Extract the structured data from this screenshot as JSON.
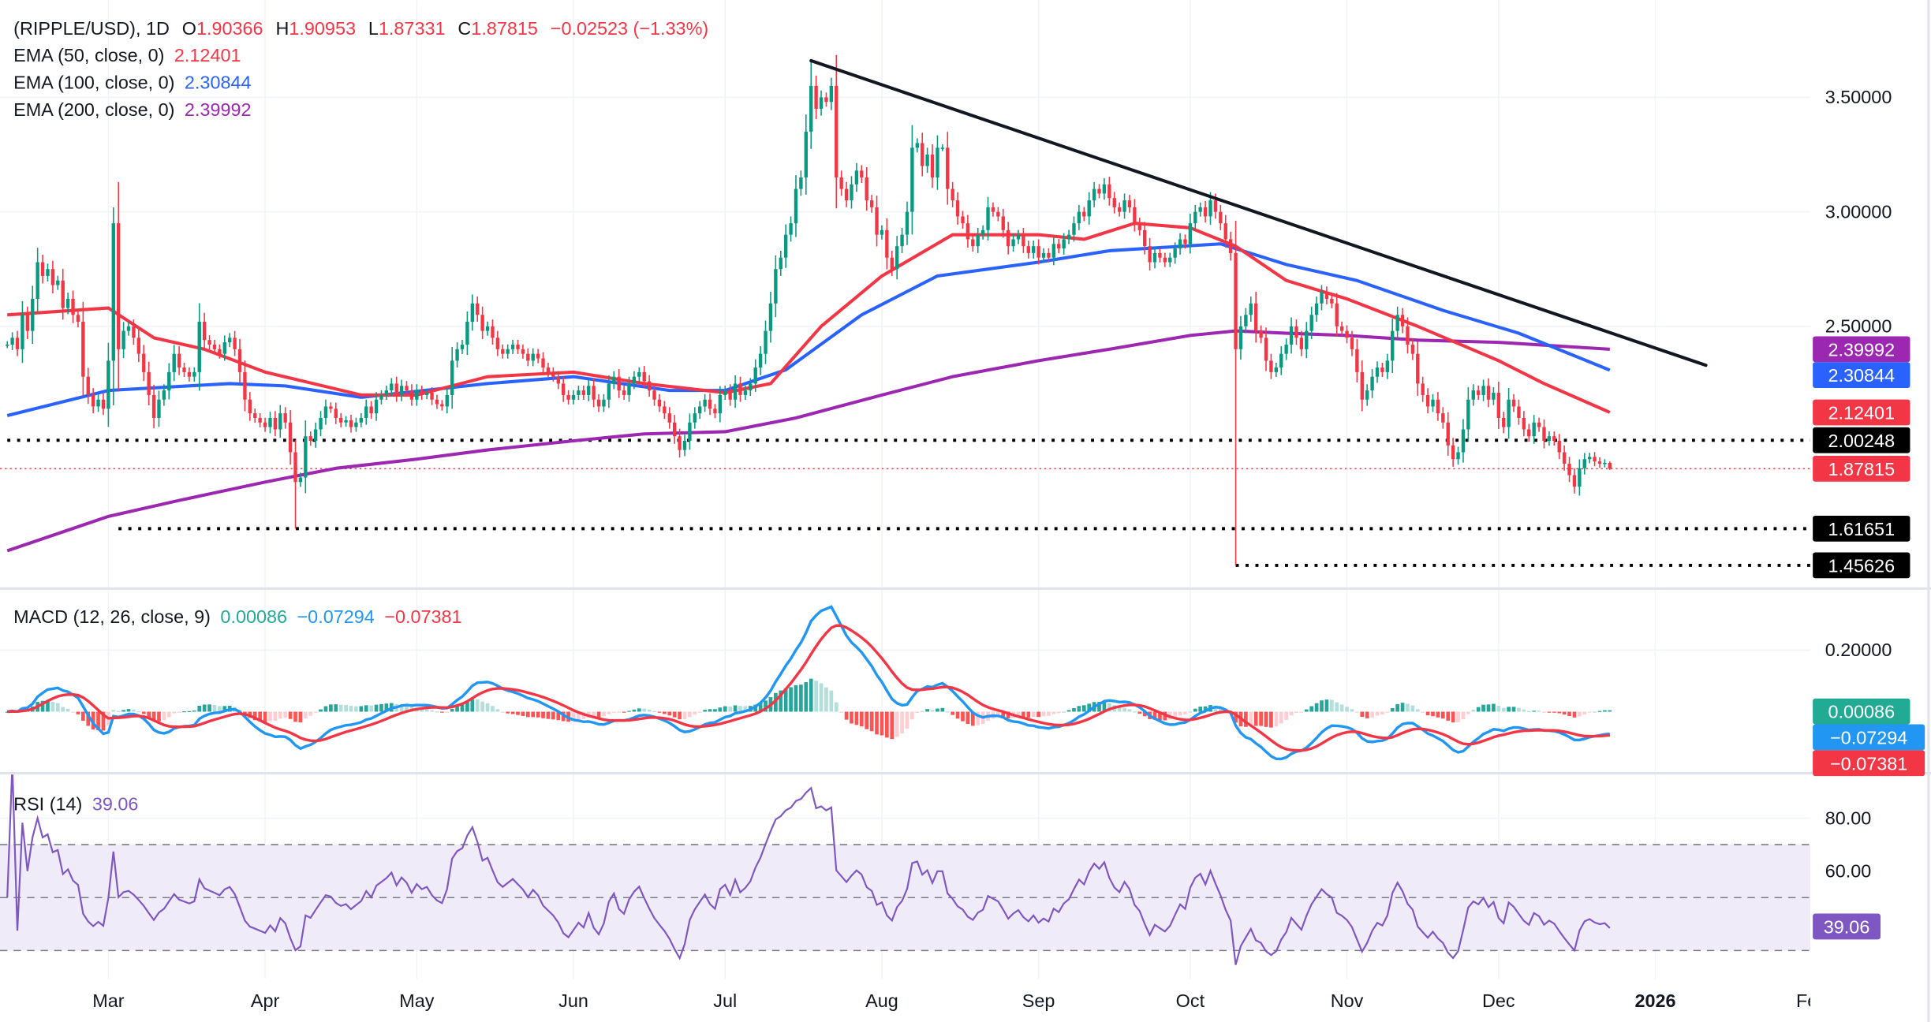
{
  "header": {
    "symbol": "(RIPPLE/USD), 1D",
    "o_label": "O",
    "o": "1.90366",
    "h_label": "H",
    "h": "1.90953",
    "l_label": "L",
    "l": "1.87331",
    "c_label": "C",
    "c": "1.87815",
    "change": "−0.02523 (−1.33%)"
  },
  "legend": {
    "ema50": {
      "label": "EMA (50, close, 0)",
      "value": "2.12401"
    },
    "ema100": {
      "label": "EMA (100, close, 0)",
      "value": "2.30844"
    },
    "ema200": {
      "label": "EMA (200, close, 0)",
      "value": "2.39992"
    },
    "macd": {
      "label": "MACD (12, 26, close, 9)",
      "hist": "0.00086",
      "macd": "−0.07294",
      "signal": "−0.07381"
    },
    "rsi": {
      "label": "RSI (14)",
      "value": "39.06"
    }
  },
  "colors": {
    "up": "#089981",
    "down": "#F23645",
    "ema50": "#F23645",
    "ema100": "#2962FF",
    "ema200": "#9C27B0",
    "macd_line": "#2196F3",
    "signal_line": "#F23645",
    "rsi_line": "#7E57C2",
    "rsi_band": "#EFEBF8",
    "trendline": "#131722",
    "level": "#000000",
    "hist_up": "#26A69A",
    "hist_up_fade": "#B2DFDB",
    "hist_down": "#FF5252",
    "hist_down_fade": "#FFCDD2"
  },
  "price_axis": {
    "ticks": [
      {
        "value": 3.5,
        "label": "3.50000"
      },
      {
        "value": 3.0,
        "label": "3.00000"
      },
      {
        "value": 2.5,
        "label": "2.50000"
      }
    ]
  },
  "macd_axis": {
    "ticks": [
      {
        "value": 0.2,
        "label": "0.20000"
      }
    ]
  },
  "rsi_axis": {
    "ticks": [
      {
        "value": 80,
        "label": "80.00"
      },
      {
        "value": 60,
        "label": "60.00"
      }
    ],
    "band": [
      30,
      70
    ],
    "mid": 50
  },
  "time_axis": {
    "labels": [
      {
        "date": "2025-03-01",
        "label": "Mar"
      },
      {
        "date": "2025-04-01",
        "label": "Apr"
      },
      {
        "date": "2025-05-01",
        "label": "May"
      },
      {
        "date": "2025-06-01",
        "label": "Jun"
      },
      {
        "date": "2025-07-01",
        "label": "Jul"
      },
      {
        "date": "2025-08-01",
        "label": "Aug"
      },
      {
        "date": "2025-09-01",
        "label": "Sep"
      },
      {
        "date": "2025-10-01",
        "label": "Oct"
      },
      {
        "date": "2025-11-01",
        "label": "Nov"
      },
      {
        "date": "2025-12-01",
        "label": "Dec"
      },
      {
        "date": "2026-01-01",
        "label": "2026",
        "bold": true
      },
      {
        "date": "2026-02-01",
        "label": "Feb"
      }
    ]
  },
  "badges": {
    "price": [
      {
        "value": 2.39992,
        "label": "2.39992",
        "color": "#9C27B0"
      },
      {
        "value": 2.30844,
        "label": "2.30844",
        "color": "#2962FF"
      },
      {
        "value": 2.12401,
        "label": "2.12401",
        "color": "#F23645"
      },
      {
        "value": 2.00248,
        "label": "2.00248",
        "color": "#000000"
      },
      {
        "value": 1.87815,
        "label": "1.87815",
        "color": "#F23645"
      },
      {
        "value": 1.61651,
        "label": "1.61651",
        "color": "#000000"
      },
      {
        "value": 1.45626,
        "label": "1.45626",
        "color": "#000000"
      }
    ],
    "macd": [
      {
        "value": 0.00086,
        "label": "0.00086",
        "color": "#22AB94"
      },
      {
        "value": -0.07294,
        "label": "−0.07294",
        "color": "#2196F3"
      },
      {
        "value": -0.07381,
        "label": "−0.07381",
        "color": "#F23645"
      }
    ],
    "rsi": [
      {
        "value": 39.06,
        "label": "39.06",
        "color": "#7E57C2"
      }
    ]
  },
  "chart_data": {
    "type": "candlestick",
    "symbol": "RIPPLE/USD",
    "interval": "1D",
    "start_date": "2025-02-09",
    "ylim": [
      1.4,
      3.7
    ],
    "grid": true,
    "closes": [
      2.42,
      2.45,
      2.4,
      2.55,
      2.48,
      2.62,
      2.78,
      2.72,
      2.75,
      2.68,
      2.7,
      2.58,
      2.62,
      2.55,
      2.52,
      2.28,
      2.2,
      2.15,
      2.18,
      2.14,
      2.35,
      2.95,
      2.4,
      2.48,
      2.5,
      2.45,
      2.38,
      2.3,
      2.2,
      2.1,
      2.18,
      2.22,
      2.3,
      2.38,
      2.32,
      2.3,
      2.28,
      2.3,
      2.52,
      2.44,
      2.42,
      2.4,
      2.38,
      2.43,
      2.45,
      2.4,
      2.3,
      2.18,
      2.12,
      2.1,
      2.08,
      2.06,
      2.1,
      2.05,
      2.12,
      2.08,
      1.95,
      1.82,
      1.84,
      2.02,
      2.0,
      2.05,
      2.1,
      2.15,
      2.14,
      2.1,
      2.08,
      2.09,
      2.06,
      2.08,
      2.1,
      2.15,
      2.12,
      2.18,
      2.2,
      2.22,
      2.25,
      2.2,
      2.24,
      2.22,
      2.18,
      2.22,
      2.2,
      2.21,
      2.18,
      2.16,
      2.15,
      2.2,
      2.35,
      2.4,
      2.42,
      2.52,
      2.6,
      2.55,
      2.48,
      2.5,
      2.45,
      2.4,
      2.38,
      2.4,
      2.42,
      2.4,
      2.38,
      2.35,
      2.38,
      2.36,
      2.32,
      2.3,
      2.28,
      2.25,
      2.2,
      2.18,
      2.2,
      2.22,
      2.2,
      2.24,
      2.18,
      2.15,
      2.18,
      2.25,
      2.28,
      2.22,
      2.2,
      2.25,
      2.28,
      2.3,
      2.26,
      2.22,
      2.18,
      2.15,
      2.12,
      2.08,
      2.02,
      1.96,
      2.0,
      2.08,
      2.12,
      2.15,
      2.18,
      2.14,
      2.12,
      2.2,
      2.22,
      2.18,
      2.25,
      2.2,
      2.22,
      2.25,
      2.32,
      2.38,
      2.48,
      2.6,
      2.75,
      2.8,
      2.9,
      2.95,
      3.1,
      3.15,
      3.35,
      3.55,
      3.45,
      3.5,
      3.48,
      3.55,
      3.15,
      3.1,
      3.05,
      3.12,
      3.18,
      3.15,
      3.05,
      3.02,
      2.9,
      2.92,
      2.8,
      2.75,
      2.85,
      2.9,
      3.0,
      3.28,
      3.3,
      3.2,
      3.25,
      3.15,
      3.28,
      3.28,
      3.1,
      3.05,
      2.98,
      2.95,
      2.88,
      2.85,
      2.9,
      2.92,
      3.02,
      3.0,
      2.98,
      2.92,
      2.85,
      2.88,
      2.9,
      2.85,
      2.82,
      2.85,
      2.8,
      2.82,
      2.8,
      2.86,
      2.84,
      2.88,
      2.9,
      2.95,
      3.0,
      2.98,
      3.05,
      3.1,
      3.08,
      3.12,
      3.06,
      3.02,
      3.0,
      3.05,
      3.02,
      2.95,
      2.92,
      2.85,
      2.78,
      2.82,
      2.8,
      2.78,
      2.8,
      2.84,
      2.88,
      2.86,
      2.95,
      3.0,
      3.02,
      2.98,
      3.05,
      3.0,
      2.95,
      2.88,
      2.82,
      2.4,
      2.5,
      2.55,
      2.6,
      2.48,
      2.45,
      2.35,
      2.3,
      2.32,
      2.38,
      2.42,
      2.5,
      2.45,
      2.4,
      2.48,
      2.55,
      2.6,
      2.65,
      2.62,
      2.6,
      2.5,
      2.48,
      2.45,
      2.4,
      2.3,
      2.18,
      2.22,
      2.28,
      2.32,
      2.3,
      2.35,
      2.48,
      2.55,
      2.5,
      2.42,
      2.38,
      2.25,
      2.2,
      2.15,
      2.18,
      2.12,
      2.08,
      1.98,
      1.92,
      1.95,
      2.05,
      2.18,
      2.22,
      2.2,
      2.24,
      2.18,
      2.21,
      2.1,
      2.06,
      2.18,
      2.15,
      2.1,
      2.05,
      2.02,
      2.08,
      2.06,
      2.0,
      2.02,
      2.0,
      1.95,
      1.9,
      1.85,
      1.8,
      1.88,
      1.92,
      1.93,
      1.91,
      1.9,
      1.90366,
      1.87815
    ],
    "last_bar": {
      "open": 1.90366,
      "high": 1.90953,
      "low": 1.87331,
      "close": 1.87815
    },
    "extremes": [
      {
        "date": "2025-03-02",
        "high": 3.02
      },
      {
        "date": "2025-04-07",
        "low": 1.61651
      },
      {
        "date": "2025-07-18",
        "high": 3.66
      },
      {
        "date": "2025-10-10",
        "low": 1.45626
      }
    ],
    "ema50": [
      [
        "2025-02-09",
        2.55
      ],
      [
        "2025-03-01",
        2.58
      ],
      [
        "2025-03-10",
        2.45
      ],
      [
        "2025-03-20",
        2.4
      ],
      [
        "2025-04-01",
        2.3
      ],
      [
        "2025-04-20",
        2.2
      ],
      [
        "2025-05-01",
        2.2
      ],
      [
        "2025-05-15",
        2.28
      ],
      [
        "2025-06-01",
        2.3
      ],
      [
        "2025-06-15",
        2.25
      ],
      [
        "2025-07-01",
        2.21
      ],
      [
        "2025-07-10",
        2.25
      ],
      [
        "2025-07-20",
        2.5
      ],
      [
        "2025-08-01",
        2.72
      ],
      [
        "2025-08-15",
        2.9
      ],
      [
        "2025-09-01",
        2.9
      ],
      [
        "2025-09-10",
        2.88
      ],
      [
        "2025-09-20",
        2.95
      ],
      [
        "2025-10-01",
        2.93
      ],
      [
        "2025-10-10",
        2.85
      ],
      [
        "2025-10-20",
        2.7
      ],
      [
        "2025-11-01",
        2.62
      ],
      [
        "2025-11-15",
        2.5
      ],
      [
        "2025-12-01",
        2.35
      ],
      [
        "2025-12-10",
        2.25
      ],
      [
        "2025-12-23",
        2.12401
      ]
    ],
    "ema100": [
      [
        "2025-02-09",
        2.11
      ],
      [
        "2025-03-01",
        2.22
      ],
      [
        "2025-03-25",
        2.25
      ],
      [
        "2025-04-05",
        2.24
      ],
      [
        "2025-04-20",
        2.19
      ],
      [
        "2025-05-15",
        2.25
      ],
      [
        "2025-06-01",
        2.28
      ],
      [
        "2025-06-20",
        2.22
      ],
      [
        "2025-07-01",
        2.22
      ],
      [
        "2025-07-13",
        2.31
      ],
      [
        "2025-07-28",
        2.55
      ],
      [
        "2025-08-12",
        2.72
      ],
      [
        "2025-09-01",
        2.78
      ],
      [
        "2025-09-15",
        2.83
      ],
      [
        "2025-10-07",
        2.86
      ],
      [
        "2025-10-20",
        2.77
      ],
      [
        "2025-11-03",
        2.7
      ],
      [
        "2025-11-20",
        2.57
      ],
      [
        "2025-12-05",
        2.47
      ],
      [
        "2025-12-23",
        2.30844
      ]
    ],
    "ema200": [
      [
        "2025-02-09",
        1.52
      ],
      [
        "2025-03-01",
        1.67
      ],
      [
        "2025-03-15",
        1.74
      ],
      [
        "2025-04-01",
        1.82
      ],
      [
        "2025-04-15",
        1.88
      ],
      [
        "2025-05-01",
        1.92
      ],
      [
        "2025-05-15",
        1.96
      ],
      [
        "2025-06-01",
        2.0
      ],
      [
        "2025-06-15",
        2.03
      ],
      [
        "2025-07-01",
        2.04
      ],
      [
        "2025-07-15",
        2.1
      ],
      [
        "2025-08-01",
        2.2
      ],
      [
        "2025-08-15",
        2.28
      ],
      [
        "2025-09-01",
        2.35
      ],
      [
        "2025-09-15",
        2.4
      ],
      [
        "2025-10-01",
        2.46
      ],
      [
        "2025-10-10",
        2.48
      ],
      [
        "2025-10-20",
        2.47
      ],
      [
        "2025-11-01",
        2.46
      ],
      [
        "2025-11-15",
        2.44
      ],
      [
        "2025-12-01",
        2.43
      ],
      [
        "2025-12-23",
        2.39992
      ]
    ],
    "trendline": {
      "start": {
        "date": "2025-07-18",
        "price": 3.66
      },
      "end": {
        "date": "2026-01-11",
        "price": 2.33
      }
    },
    "levels": [
      {
        "price": 2.00248,
        "from": "2025-02-09"
      },
      {
        "price": 1.61651,
        "from": "2025-03-03"
      },
      {
        "price": 1.45626,
        "from": "2025-10-10"
      }
    ],
    "current_price_line": 1.87815,
    "macd": {
      "fast": 12,
      "slow": 26,
      "signal": 9,
      "ylim": [
        -0.2,
        0.4
      ]
    },
    "rsi": {
      "period": 14,
      "ylim": [
        20,
        100
      ]
    }
  }
}
